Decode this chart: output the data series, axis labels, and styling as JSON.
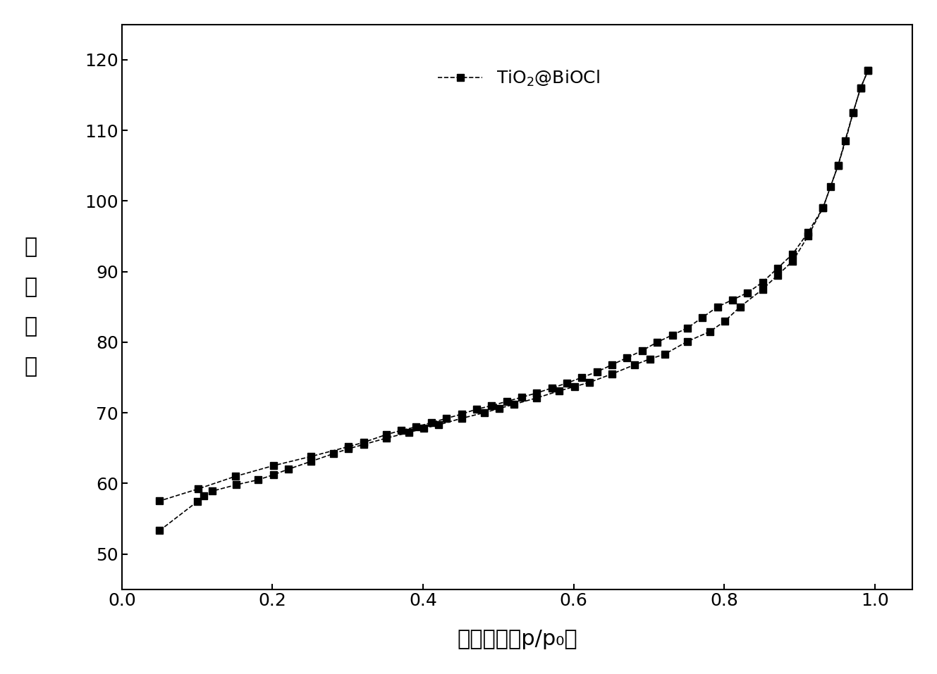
{
  "adsorption_x": [
    0.05,
    0.1,
    0.109,
    0.12,
    0.152,
    0.181,
    0.201,
    0.221,
    0.251,
    0.281,
    0.301,
    0.321,
    0.351,
    0.381,
    0.401,
    0.421,
    0.451,
    0.481,
    0.501,
    0.521,
    0.551,
    0.581,
    0.601,
    0.621,
    0.651,
    0.681,
    0.701,
    0.721,
    0.751,
    0.781,
    0.801,
    0.821,
    0.851,
    0.871,
    0.891,
    0.911,
    0.931,
    0.951,
    0.971,
    0.981,
    0.991
  ],
  "adsorption_y": [
    53.3,
    57.4,
    58.2,
    58.9,
    59.8,
    60.5,
    61.2,
    62.0,
    63.1,
    64.2,
    64.9,
    65.5,
    66.4,
    67.2,
    67.8,
    68.3,
    69.2,
    70.0,
    70.6,
    71.2,
    72.1,
    73.1,
    73.7,
    74.3,
    75.5,
    76.8,
    77.6,
    78.3,
    80.1,
    81.5,
    83.0,
    85.0,
    87.5,
    89.5,
    91.5,
    95.0,
    99.0,
    105.0,
    112.5,
    116.0,
    118.5
  ],
  "desorption_x": [
    0.991,
    0.981,
    0.971,
    0.961,
    0.951,
    0.941,
    0.931,
    0.911,
    0.891,
    0.871,
    0.851,
    0.831,
    0.811,
    0.791,
    0.771,
    0.751,
    0.731,
    0.711,
    0.691,
    0.671,
    0.651,
    0.631,
    0.611,
    0.591,
    0.571,
    0.551,
    0.531,
    0.511,
    0.491,
    0.471,
    0.451,
    0.431,
    0.411,
    0.391,
    0.371,
    0.351,
    0.321,
    0.301,
    0.251,
    0.201,
    0.151,
    0.101,
    0.05
  ],
  "desorption_y": [
    118.5,
    116.0,
    112.5,
    108.5,
    105.0,
    102.0,
    99.0,
    95.5,
    92.5,
    90.5,
    88.5,
    87.0,
    86.0,
    85.0,
    83.5,
    82.0,
    81.0,
    80.0,
    78.8,
    77.8,
    76.8,
    75.8,
    75.0,
    74.2,
    73.5,
    72.8,
    72.2,
    71.6,
    71.0,
    70.5,
    69.8,
    69.2,
    68.6,
    68.0,
    67.5,
    66.9,
    65.8,
    65.2,
    63.8,
    62.5,
    61.0,
    59.2,
    57.5
  ],
  "xlim": [
    0.0,
    1.05
  ],
  "ylim": [
    45,
    125
  ],
  "yticks": [
    50,
    60,
    70,
    80,
    90,
    100,
    110,
    120
  ],
  "xticks": [
    0.0,
    0.2,
    0.4,
    0.6,
    0.8,
    1.0
  ],
  "xlabel": "相对压力（p/p₀）",
  "ylabel": "体\n积\n吸\n附",
  "legend_label": "TiO$_2$@BiOCl",
  "color": "#000000",
  "marker": "s",
  "linestyle": "--",
  "markersize": 7,
  "linewidth": 1.2
}
